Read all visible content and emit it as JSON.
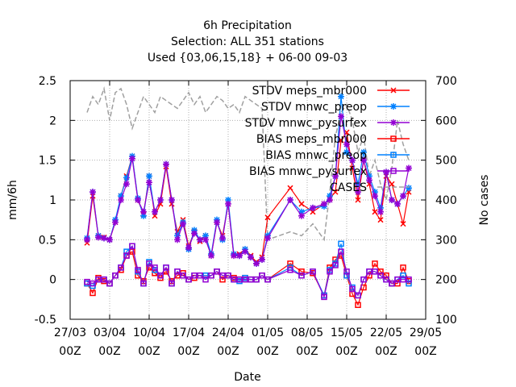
{
  "chart_data": {
    "type": "line",
    "title_lines": [
      "6h Precipitation",
      "Selection: ALL    351 stations",
      "Used {03,06,15,18} + 06-00 09-03"
    ],
    "xlabel": "Date",
    "ylabel": "mm/6h",
    "y2label": "No cases",
    "xlim": [
      "2011-03-27",
      "2011-05-29"
    ],
    "ylim": [
      -0.5,
      2.5
    ],
    "y2lim": [
      100,
      700
    ],
    "x_ticks": [
      {
        "date": "2011-03-27",
        "label": "27/03",
        "sub": "00Z"
      },
      {
        "date": "2011-04-03",
        "label": "03/04",
        "sub": "00Z"
      },
      {
        "date": "2011-04-10",
        "label": "10/04",
        "sub": "00Z"
      },
      {
        "date": "2011-04-17",
        "label": "17/04",
        "sub": "00Z"
      },
      {
        "date": "2011-04-24",
        "label": "24/04",
        "sub": "00Z"
      },
      {
        "date": "2011-05-01",
        "label": "01/05",
        "sub": "00Z"
      },
      {
        "date": "2011-05-08",
        "label": "08/05",
        "sub": "00Z"
      },
      {
        "date": "2011-05-15",
        "label": "15/05",
        "sub": "00Z"
      },
      {
        "date": "2011-05-22",
        "label": "22/05",
        "sub": "00Z"
      },
      {
        "date": "2011-05-29",
        "label": "29/05",
        "sub": "00Z"
      }
    ],
    "y_ticks": [
      "-0.5",
      "0",
      "0.5",
      "1",
      "1.5",
      "2",
      "2.5"
    ],
    "y2_ticks": [
      "100",
      "200",
      "300",
      "400",
      "500",
      "600",
      "700"
    ],
    "grid": true,
    "legend_position": "top-right",
    "dates": [
      "2011-03-30",
      "2011-03-31",
      "2011-04-01",
      "2011-04-02",
      "2011-04-03",
      "2011-04-04",
      "2011-04-05",
      "2011-04-06",
      "2011-04-07",
      "2011-04-08",
      "2011-04-09",
      "2011-04-10",
      "2011-04-11",
      "2011-04-12",
      "2011-04-13",
      "2011-04-14",
      "2011-04-15",
      "2011-04-16",
      "2011-04-17",
      "2011-04-18",
      "2011-04-19",
      "2011-04-20",
      "2011-04-21",
      "2011-04-22",
      "2011-04-23",
      "2011-04-24",
      "2011-04-25",
      "2011-04-26",
      "2011-04-27",
      "2011-04-28",
      "2011-04-29",
      "2011-04-30",
      "2011-05-01",
      "2011-05-05",
      "2011-05-07",
      "2011-05-09",
      "2011-05-11",
      "2011-05-12",
      "2011-05-13",
      "2011-05-14",
      "2011-05-15",
      "2011-05-16",
      "2011-05-17",
      "2011-05-18",
      "2011-05-19",
      "2011-05-20",
      "2011-05-21",
      "2011-05-22",
      "2011-05-23",
      "2011-05-24",
      "2011-05-25",
      "2011-05-26"
    ],
    "series": [
      {
        "name": "STDV meps_mbr000",
        "color": "#ff0000",
        "marker": "x",
        "axis": "y1",
        "values": [
          0.46,
          1.05,
          0.55,
          0.53,
          0.5,
          0.72,
          1.05,
          1.3,
          1.55,
          1.0,
          0.82,
          1.3,
          0.8,
          0.95,
          1.42,
          0.95,
          0.6,
          0.75,
          0.42,
          0.6,
          0.48,
          0.55,
          0.3,
          0.72,
          0.55,
          0.95,
          0.3,
          0.32,
          0.38,
          0.3,
          0.22,
          0.28,
          0.78,
          1.15,
          0.95,
          0.85,
          0.95,
          1.02,
          1.1,
          1.75,
          1.85,
          1.4,
          1.0,
          1.5,
          1.2,
          0.85,
          0.75,
          1.3,
          1.2,
          0.95,
          0.7,
          1.1
        ]
      },
      {
        "name": "STDV mnwc_preop",
        "color": "#0080ff",
        "marker": "*",
        "axis": "y1",
        "values": [
          0.52,
          1.1,
          0.55,
          0.52,
          0.5,
          0.75,
          1.05,
          1.28,
          1.55,
          1.02,
          0.8,
          1.3,
          0.85,
          1.0,
          1.45,
          1.0,
          0.55,
          0.72,
          0.38,
          0.62,
          0.5,
          0.55,
          0.32,
          0.75,
          0.5,
          1.0,
          0.32,
          0.3,
          0.38,
          0.28,
          0.2,
          0.25,
          0.55,
          1.0,
          0.85,
          0.9,
          0.92,
          1.05,
          1.3,
          2.3,
          1.6,
          1.5,
          1.2,
          1.6,
          1.3,
          1.1,
          0.9,
          1.35,
          1.0,
          0.95,
          1.05,
          1.15
        ]
      },
      {
        "name": "STDV mnwc_pysurfex",
        "color": "#9400d3",
        "marker": "*",
        "axis": "y1",
        "values": [
          0.5,
          1.1,
          0.53,
          0.52,
          0.5,
          0.72,
          1.0,
          1.2,
          1.52,
          1.0,
          0.85,
          1.22,
          0.85,
          1.0,
          1.45,
          1.0,
          0.5,
          0.7,
          0.4,
          0.58,
          0.5,
          0.5,
          0.3,
          0.72,
          0.52,
          0.95,
          0.3,
          0.3,
          0.35,
          0.28,
          0.2,
          0.25,
          0.52,
          1.0,
          0.8,
          0.9,
          0.95,
          1.0,
          1.3,
          2.05,
          1.7,
          1.5,
          1.1,
          1.5,
          1.25,
          1.05,
          0.85,
          1.35,
          1.0,
          0.95,
          1.05,
          1.4
        ]
      },
      {
        "name": "BIAS meps_mbr000",
        "color": "#ff0000",
        "marker": "square",
        "axis": "y1",
        "values": [
          -0.05,
          -0.17,
          0.02,
          -0.02,
          -0.05,
          0.05,
          0.12,
          0.3,
          0.35,
          0.05,
          -0.02,
          0.15,
          0.08,
          0.02,
          0.1,
          -0.02,
          0.05,
          0.08,
          0.0,
          0.02,
          0.05,
          0.05,
          0.05,
          0.1,
          0.0,
          0.05,
          0.02,
          0.0,
          0.02,
          0.0,
          0.0,
          0.05,
          0.0,
          0.2,
          0.1,
          0.08,
          -0.2,
          0.15,
          0.25,
          0.3,
          0.05,
          -0.18,
          -0.32,
          -0.1,
          0.05,
          0.2,
          0.1,
          0.05,
          -0.05,
          -0.05,
          0.15,
          -0.02
        ]
      },
      {
        "name": "BIAS mnwc_preop",
        "color": "#0080ff",
        "marker": "square",
        "axis": "y1",
        "values": [
          -0.05,
          -0.08,
          0.0,
          0.0,
          -0.05,
          0.05,
          0.15,
          0.35,
          0.42,
          0.1,
          -0.05,
          0.22,
          0.12,
          0.05,
          0.15,
          -0.05,
          0.1,
          0.05,
          0.0,
          0.05,
          0.05,
          0.05,
          0.05,
          0.1,
          0.05,
          0.05,
          0.0,
          -0.02,
          0.02,
          0.0,
          0.0,
          0.05,
          0.0,
          0.15,
          0.05,
          0.1,
          -0.2,
          0.12,
          0.2,
          0.45,
          0.05,
          -0.1,
          -0.2,
          0.0,
          0.1,
          0.1,
          0.05,
          0.0,
          -0.05,
          0.0,
          0.05,
          -0.05
        ]
      },
      {
        "name": "BIAS mnwc_pysurfex",
        "color": "#9400d3",
        "marker": "square",
        "axis": "y1",
        "values": [
          -0.03,
          -0.05,
          0.0,
          0.0,
          -0.05,
          0.05,
          0.15,
          0.3,
          0.42,
          0.12,
          -0.05,
          0.2,
          0.15,
          0.05,
          0.15,
          -0.05,
          0.1,
          0.05,
          0.0,
          0.05,
          0.05,
          0.0,
          0.05,
          0.1,
          0.05,
          0.05,
          0.0,
          0.0,
          0.0,
          0.0,
          0.0,
          0.05,
          0.0,
          0.12,
          0.05,
          0.1,
          -0.22,
          0.1,
          0.18,
          0.35,
          0.1,
          -0.12,
          -0.2,
          0.0,
          0.1,
          0.1,
          0.05,
          0.0,
          -0.05,
          0.0,
          0.0,
          0.0
        ]
      },
      {
        "name": "CASES",
        "color": "#a0a0a0",
        "marker": "none",
        "dash": true,
        "axis": "y2",
        "values": [
          620,
          660,
          640,
          680,
          600,
          670,
          680,
          640,
          580,
          620,
          660,
          640,
          620,
          660,
          650,
          640,
          630,
          650,
          670,
          640,
          660,
          620,
          640,
          660,
          650,
          630,
          640,
          620,
          660,
          650,
          640,
          630,
          300,
          320,
          310,
          340,
          300,
          420,
          560,
          620,
          640,
          600,
          520,
          560,
          460,
          500,
          440,
          400,
          480,
          600,
          540,
          500
        ]
      }
    ]
  }
}
